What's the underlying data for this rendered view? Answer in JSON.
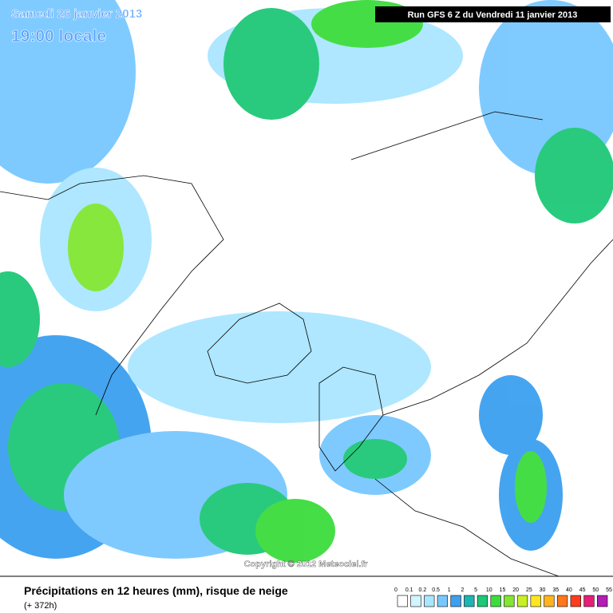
{
  "header": {
    "date": "Samedi 26 janvier 2013",
    "time": "19:00 locale",
    "run": "Run GFS 6 Z du Vendredi 11 janvier 2013"
  },
  "map": {
    "copyright": "Copyright © 2012 Meteociel.fr"
  },
  "footer": {
    "title": "Précipitations en 12 heures (mm), risque de neige",
    "lead": "(+ 372h)"
  },
  "legend": {
    "labels": [
      "0",
      "0.1",
      "0.2",
      "0.5",
      "1",
      "2",
      "5",
      "10",
      "15",
      "20",
      "25",
      "30",
      "35",
      "40",
      "45",
      "50",
      "55"
    ],
    "colors": [
      "#ffffff",
      "#d2f5ff",
      "#aae6ff",
      "#78c8ff",
      "#3ca0f0",
      "#1eb4b4",
      "#1ec878",
      "#3cdc3c",
      "#82e632",
      "#c8f028",
      "#ffe61e",
      "#ffb41e",
      "#ff781e",
      "#ff3c1e",
      "#e61e78",
      "#b41eb4"
    ]
  }
}
